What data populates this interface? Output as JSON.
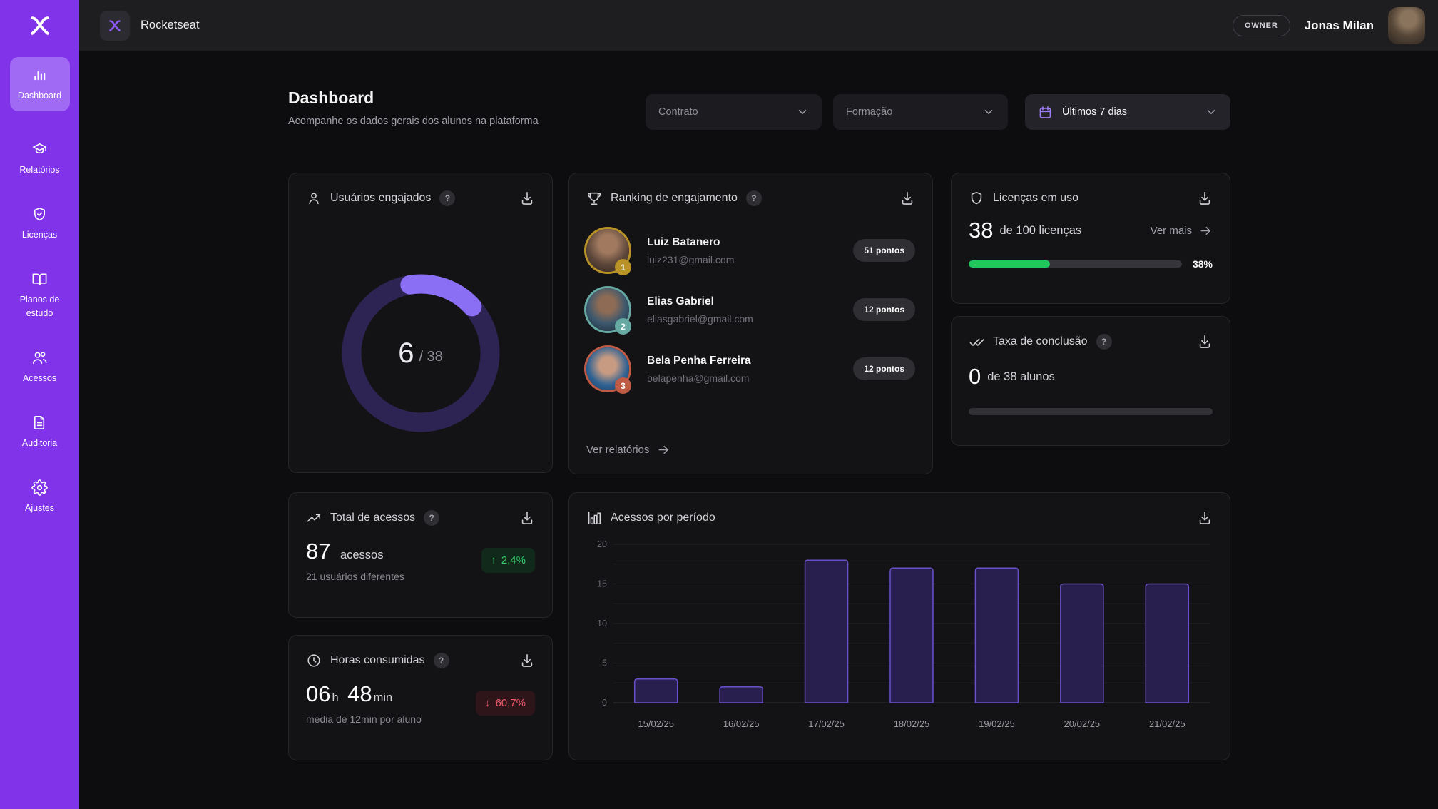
{
  "header": {
    "brand": "Rocketseat",
    "role_badge": "OWNER",
    "user_name": "Jonas Milan"
  },
  "sidebar": {
    "items": [
      {
        "label": "Dashboard",
        "active": true
      },
      {
        "label": "Relatórios",
        "active": false
      },
      {
        "label": "Licenças",
        "active": false
      },
      {
        "label": "Planos de estudo",
        "active": false
      },
      {
        "label": "Acessos",
        "active": false
      },
      {
        "label": "Auditoria",
        "active": false
      },
      {
        "label": "Ajustes",
        "active": false
      }
    ]
  },
  "page": {
    "title": "Dashboard",
    "subtitle": "Acompanhe os dados gerais dos alunos na plataforma"
  },
  "filters": {
    "contract": {
      "placeholder": "Contrato"
    },
    "course": {
      "placeholder": "Formação"
    },
    "period": {
      "value": "Últimos 7 dias"
    }
  },
  "ui": {
    "help": "?"
  },
  "cards": {
    "engaged_users": {
      "title": "Usuários engajados",
      "value": "6",
      "total_label": "/ 38"
    },
    "ranking": {
      "title": "Ranking de engajamento",
      "link": "Ver relatórios",
      "users": [
        {
          "rank": "1",
          "name": "Luiz Batanero",
          "email": "luiz231@gmail.com",
          "points": "51 pontos"
        },
        {
          "rank": "2",
          "name": "Elias Gabriel",
          "email": "eliasgabriel@gmail.com",
          "points": "12 pontos"
        },
        {
          "rank": "3",
          "name": "Bela Penha Ferreira",
          "email": "belapenha@gmail.com",
          "points": "12 pontos"
        }
      ]
    },
    "licenses": {
      "title": "Licenças em uso",
      "value": "38",
      "caption": "de 100 licenças",
      "link": "Ver mais",
      "percent": 38,
      "percent_label": "38%"
    },
    "completion": {
      "title": "Taxa de conclusão",
      "value": "0",
      "caption": "de 38 alunos",
      "percent": 0
    },
    "total_access": {
      "title": "Total de acessos",
      "value": "87",
      "unit": "acessos",
      "caption": "21 usuários diferentes",
      "delta_icon": "↑",
      "delta": "2,4%"
    },
    "hours": {
      "title": "Horas consumidas",
      "hours": "06",
      "hours_unit": "h",
      "minutes": "48",
      "minutes_unit": "min",
      "caption": "média de 12min por aluno",
      "delta_icon": "↓",
      "delta": "60,7%"
    },
    "access_period": {
      "title": "Acessos por período"
    }
  },
  "chart_data": [
    {
      "type": "donut",
      "title": "Usuários engajados",
      "value": 6,
      "total": 38,
      "arc_color": "#8a6ef3",
      "track_color": "#2e2453"
    },
    {
      "type": "bar",
      "title": "Acessos por período",
      "categories": [
        "15/02/25",
        "16/02/25",
        "17/02/25",
        "18/02/25",
        "19/02/25",
        "20/02/25",
        "21/02/25"
      ],
      "values": [
        3,
        2,
        18,
        17,
        17,
        15,
        15
      ],
      "xlabel": "",
      "ylabel": "",
      "ylim": [
        0,
        20
      ],
      "yticks": [
        0,
        5,
        10,
        15,
        20
      ],
      "grid_step": 2.5,
      "grid": true,
      "legend": false,
      "bar_fill": "#291f4f",
      "bar_stroke": "#6b51c9"
    }
  ],
  "colors": {
    "sidebar": "#8133ea",
    "sidebar_active": "#a06af5",
    "accent_purple": "#8a6ef3",
    "progress_green": "#1fc75c",
    "delta_up_green": "#34cb68",
    "delta_down_red": "#ee5d6c",
    "rank1_ring": "#b99328",
    "rank2_ring": "#67a9a3",
    "rank3_ring": "#bf5a45"
  }
}
